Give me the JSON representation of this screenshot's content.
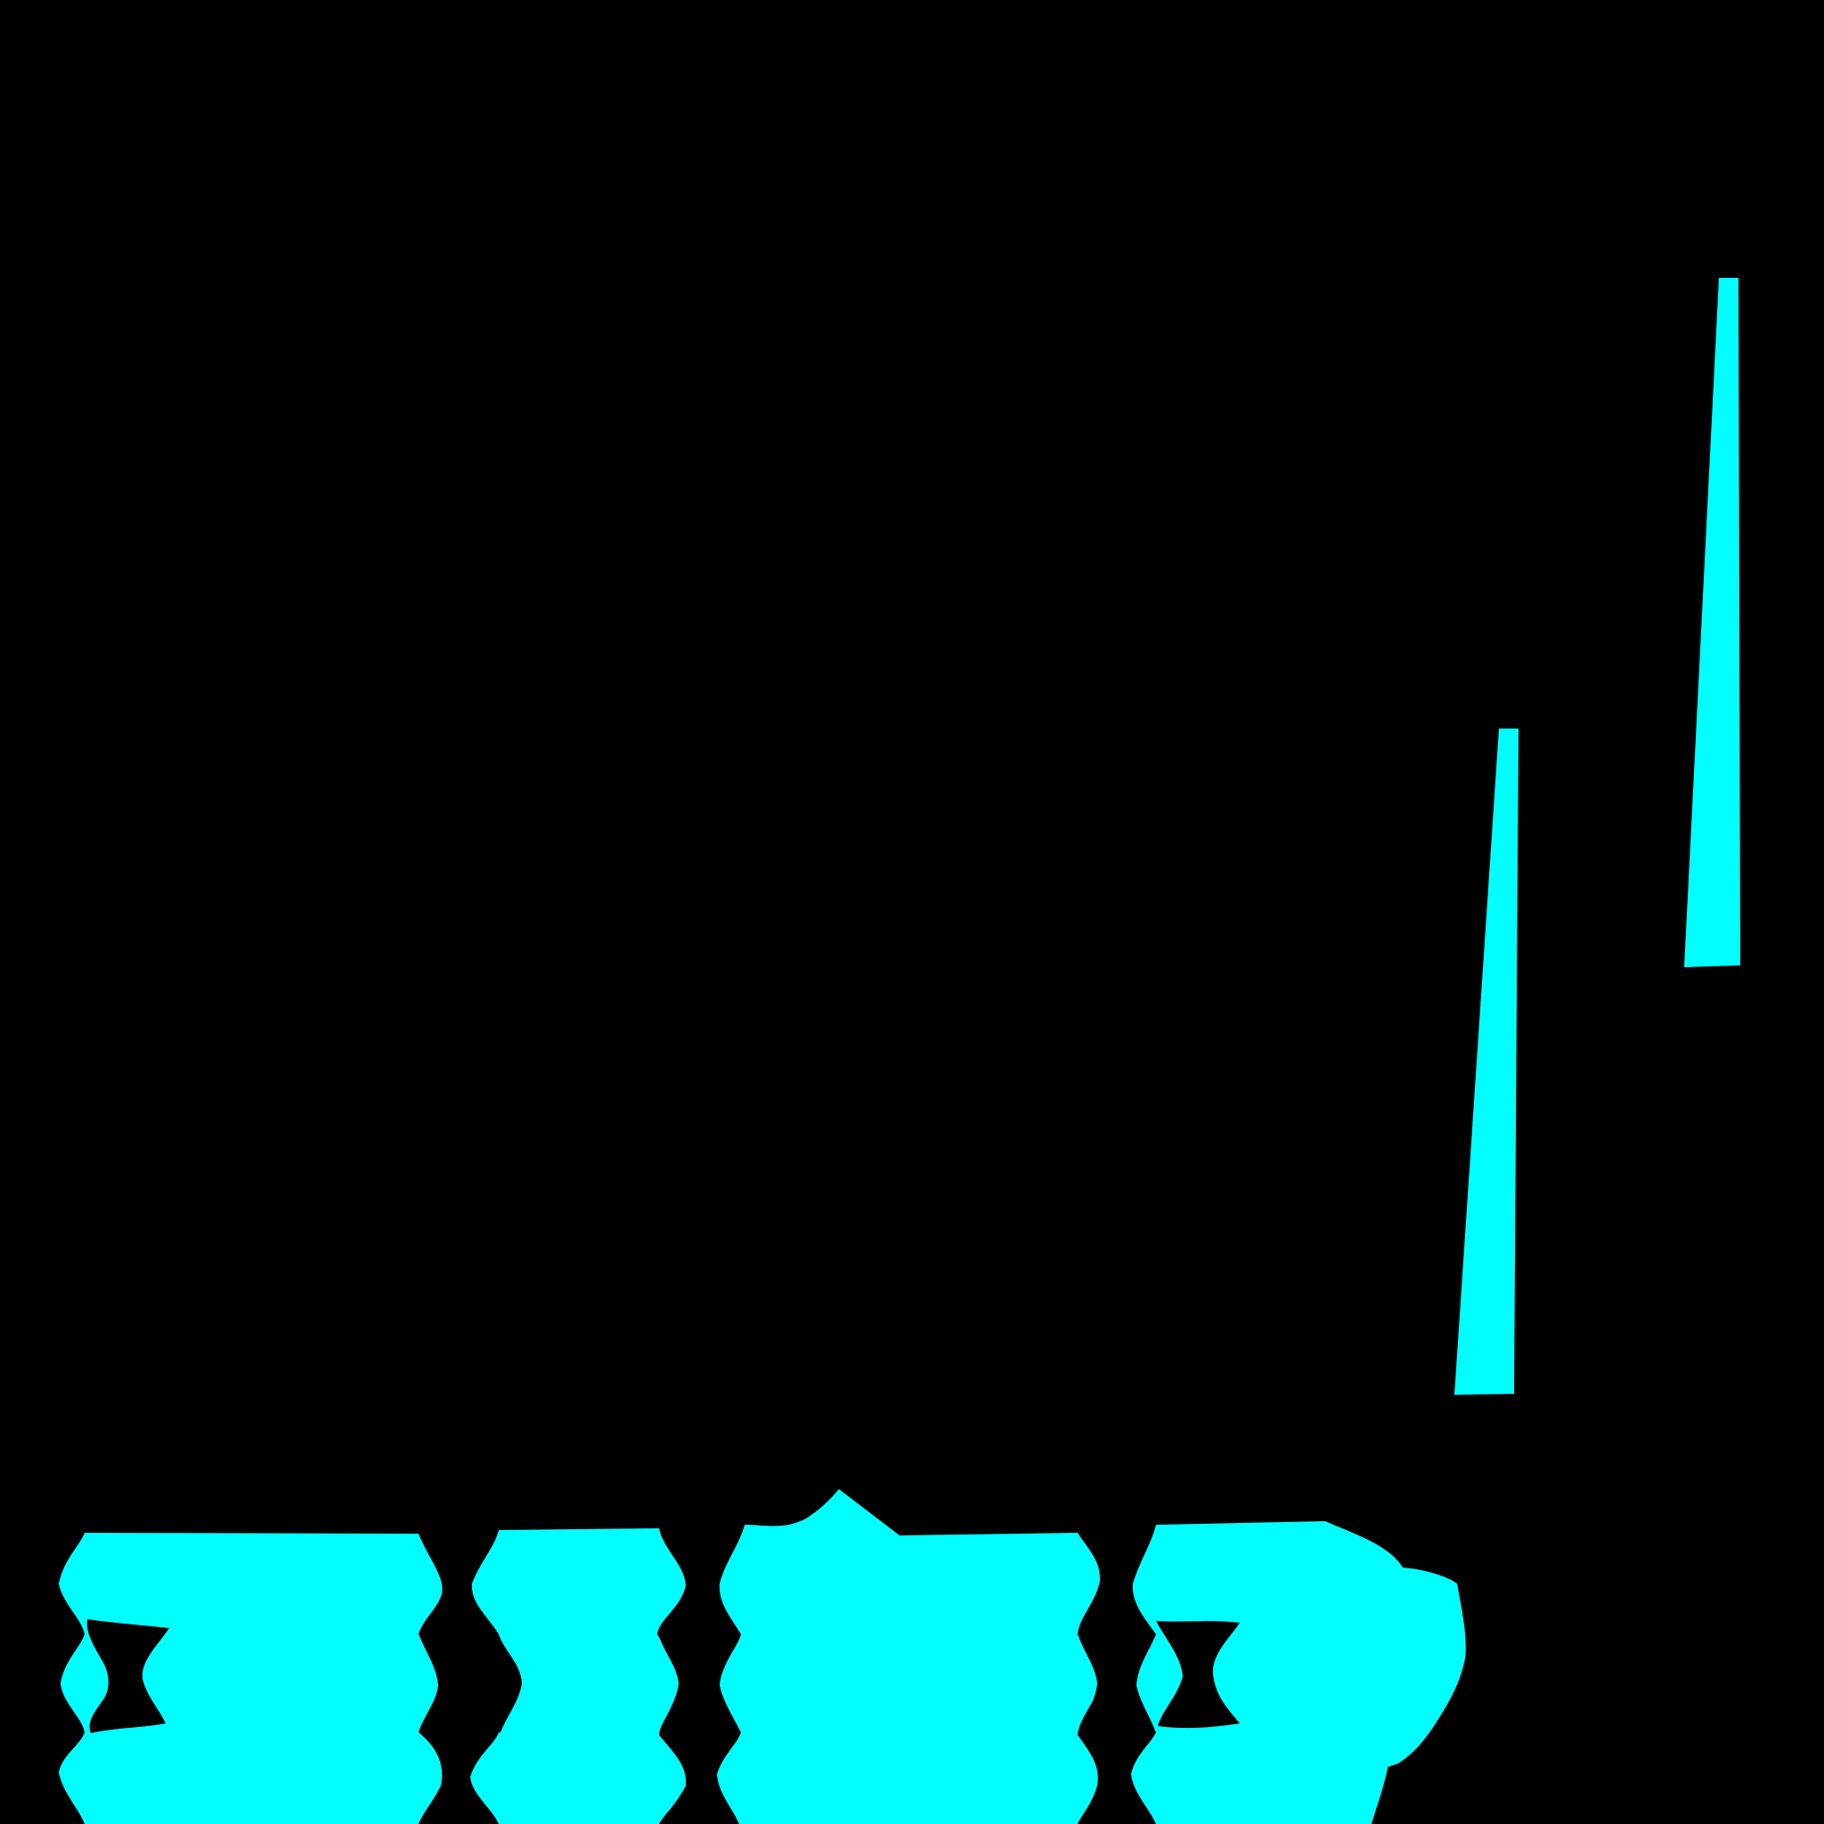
{
  "scene": {
    "background_color": "#000000",
    "shape_color": "#00FFFF",
    "shapes": [
      "tall-wedge-right",
      "tall-wedge-middle",
      "wavy-cutout-band",
      "bulge-shape-right"
    ]
  }
}
